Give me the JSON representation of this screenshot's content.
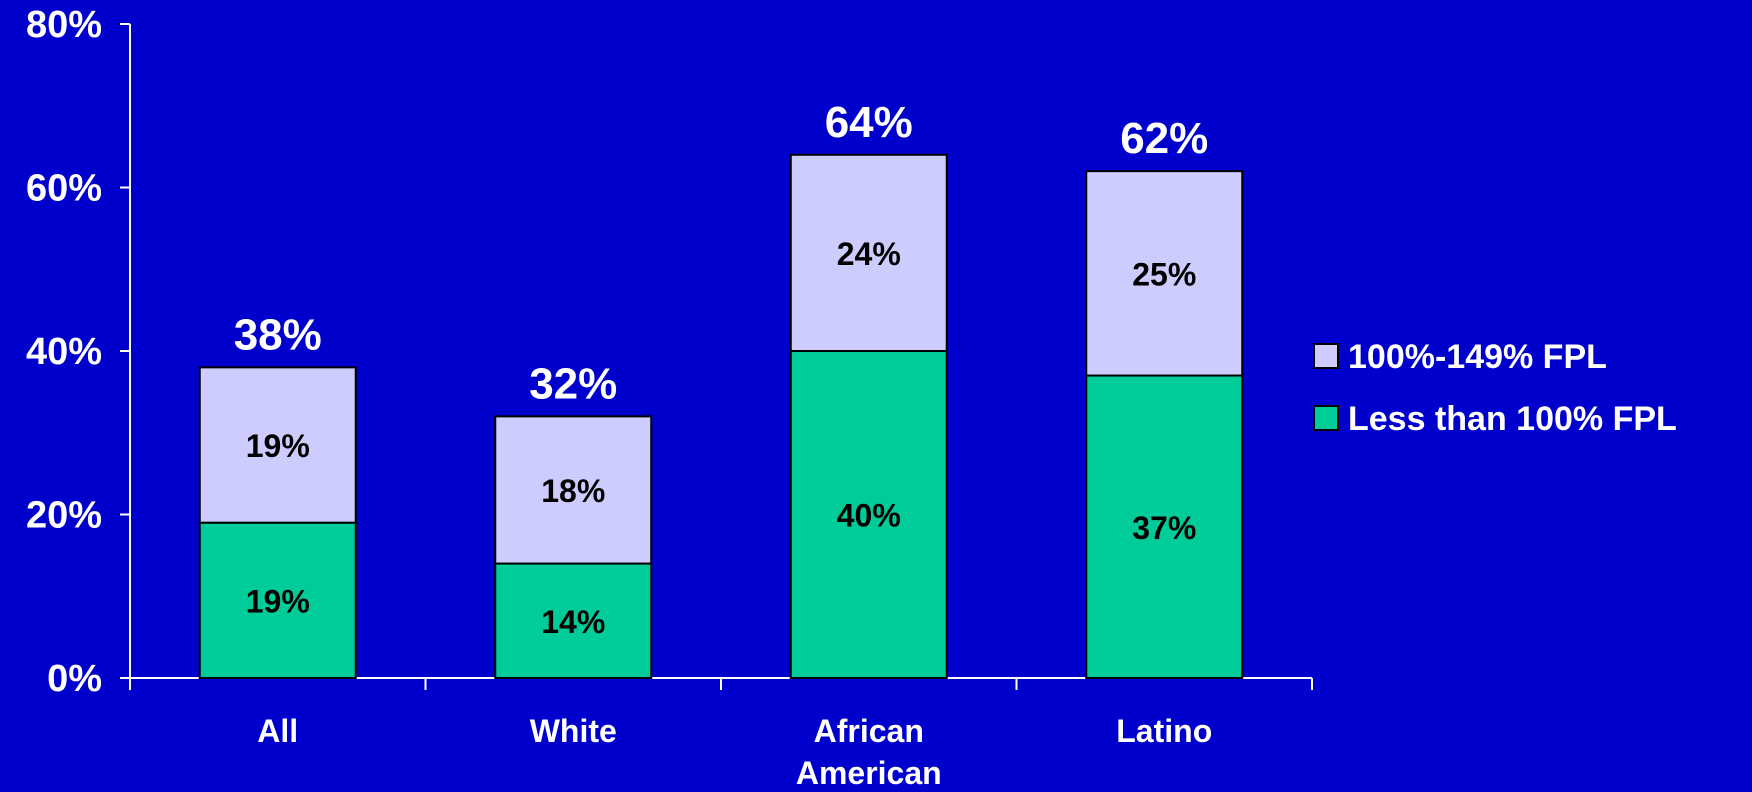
{
  "chart_data": {
    "type": "bar",
    "stacked": true,
    "categories": [
      [
        "All"
      ],
      [
        "White"
      ],
      [
        "African",
        "American"
      ],
      [
        "Latino"
      ]
    ],
    "series": [
      {
        "name": "Less than 100% FPL",
        "values": [
          19,
          14,
          40,
          37
        ],
        "labels": [
          "19%",
          "14%",
          "40%",
          "37%"
        ],
        "color": "#00CC99"
      },
      {
        "name": "100%-149% FPL",
        "values": [
          19,
          18,
          24,
          25
        ],
        "labels": [
          "19%",
          "18%",
          "24%",
          "25%"
        ],
        "color": "#CCCCFF"
      }
    ],
    "totals": [
      38,
      32,
      64,
      62
    ],
    "total_labels": [
      "38%",
      "32%",
      "64%",
      "62%"
    ],
    "ylim": [
      0,
      80
    ],
    "yticks": [
      0,
      20,
      40,
      60,
      80
    ],
    "ytick_labels": [
      "0%",
      "20%",
      "40%",
      "60%",
      "80%"
    ],
    "title": "",
    "xlabel": "",
    "ylabel": "",
    "grid": false,
    "legend_position": "right",
    "legend_order": [
      "100%-149% FPL",
      "Less than 100% FPL"
    ]
  },
  "colors": {
    "background": "#0000CC",
    "axis": "#FFFFFF",
    "bar_outline": "#000000"
  }
}
